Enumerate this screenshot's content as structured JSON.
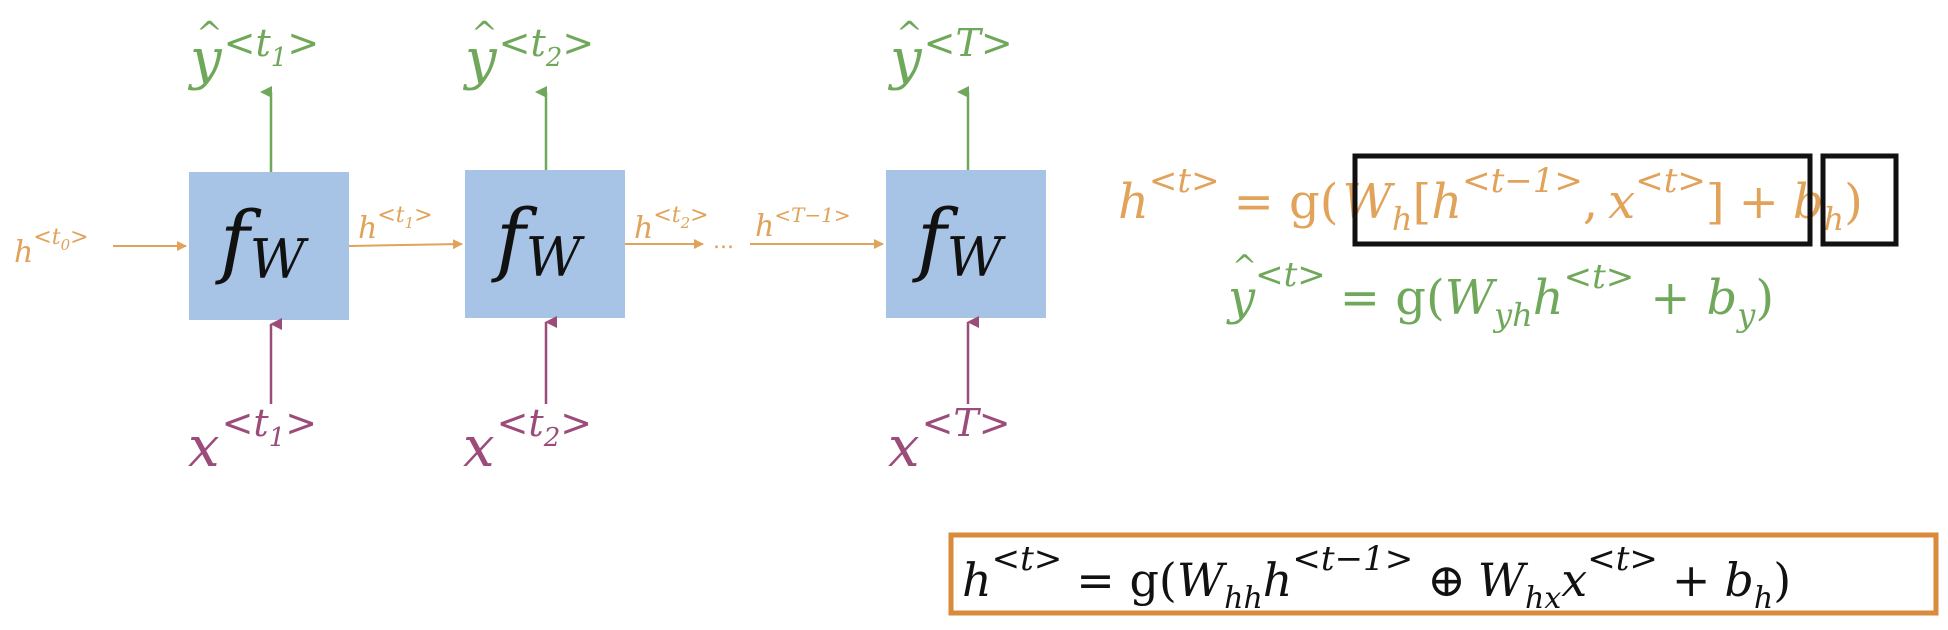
{
  "colors": {
    "cell_fill": "#a7c4e6",
    "hidden": "#e1a25a",
    "output": "#6fa85a",
    "input": "#9b4c7a",
    "ink": "#111111",
    "box_orange": "#d98a3a"
  },
  "cells": [
    {
      "label_main": "f",
      "label_sub": "W",
      "output": {
        "base": "y",
        "hat": "^",
        "sup": "<t",
        "sup_sub": "1",
        "sup_close": ">"
      },
      "input": {
        "base": "x",
        "sup": "<t",
        "sup_sub": "1",
        "sup_close": ">"
      }
    },
    {
      "label_main": "f",
      "label_sub": "W",
      "output": {
        "base": "y",
        "hat": "^",
        "sup": "<t",
        "sup_sub": "2",
        "sup_close": ">"
      },
      "input": {
        "base": "x",
        "sup": "<t",
        "sup_sub": "2",
        "sup_close": ">"
      }
    },
    {
      "label_main": "f",
      "label_sub": "W",
      "output": {
        "base": "y",
        "hat": "^",
        "sup": "<T>",
        "sup_sub": "",
        "sup_close": ""
      },
      "input": {
        "base": "x",
        "sup": "<T>",
        "sup_sub": "",
        "sup_close": ""
      }
    }
  ],
  "hidden_labels": {
    "h0": {
      "base": "h",
      "sup": "<t",
      "sup_sub": "0",
      "sup_close": ">"
    },
    "h1": {
      "base": "h",
      "sup": "<t",
      "sup_sub": "1",
      "sup_close": ">"
    },
    "h2": {
      "base": "h",
      "sup": "<t",
      "sup_sub": "2",
      "sup_close": ">"
    },
    "ellipsis": "...",
    "hT1": {
      "base": "h",
      "sup": "<T−1>"
    }
  },
  "equations": {
    "eq1": {
      "lhs_base": "h",
      "lhs_sup": "<t>",
      "eq": "= g(",
      "w": "W",
      "w_sub": "h",
      "bracket_open": "[",
      "h_base": "h",
      "h_sup": "<t−1>",
      "comma": ",",
      "x_base": "x",
      "x_sup": "<t>",
      "bracket_close": "]",
      "plus": "+",
      "b": "b",
      "b_sub": "h",
      "close": ")"
    },
    "eq2": {
      "lhs_base": "y",
      "lhs_hat": "^",
      "lhs_sup": "<t>",
      "eq": "= g(",
      "w": "W",
      "w_sub": "yh",
      "h_base": "h",
      "h_sup": "<t>",
      "plus": "+",
      "b": "b",
      "b_sub": "y",
      "close": ")"
    },
    "eq3": {
      "lhs_base": "h",
      "lhs_sup": "<t>",
      "eq": "= g(",
      "w1": "W",
      "w1_sub": "hh",
      "h_base": "h",
      "h_sup": "<t−1>",
      "oplus": "⊕",
      "w2": "W",
      "w2_sub": "hx",
      "x_base": "x",
      "x_sup": "<t>",
      "plus": "+",
      "b": "b",
      "b_sub": "h",
      "close": ")"
    }
  }
}
